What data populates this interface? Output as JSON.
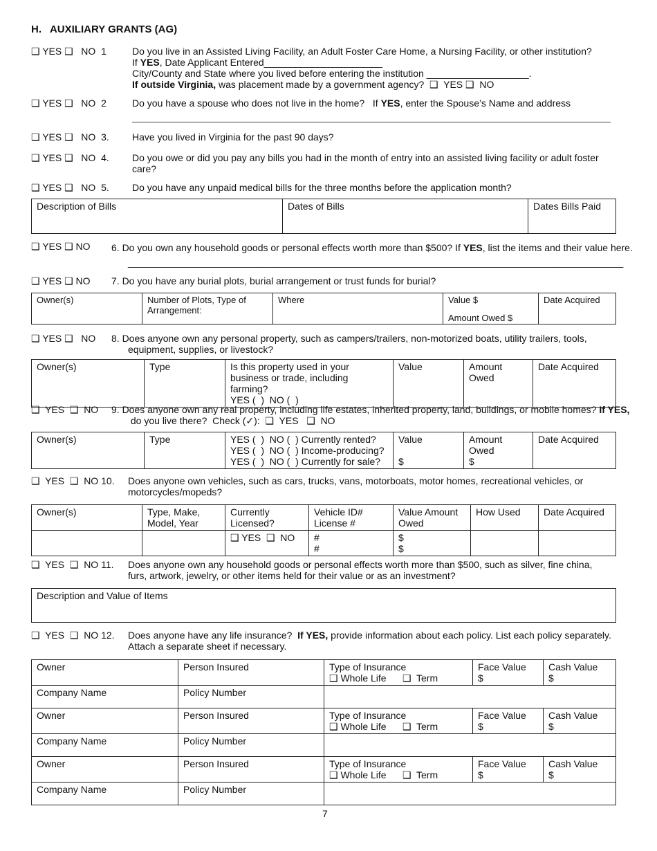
{
  "section_title": "H.   AUXILIARY GRANTS (AG)",
  "checkbox_glyph": "❑",
  "q1": {
    "checks": "❑ YES ❑   NO  1",
    "text": "Do you live in an Assisted Living Facility, an Adult Foster Care Home, a Nursing Facility, or other institution?",
    "if_yes": "YES",
    "l2": ", Date Applicant Entered______________________",
    "l3": "City/County and State where you lived before entering the institution ___________________.",
    "l4_bold": "If outside Virginia,",
    "l4": " was placement made by a government agency?  ❑  YES ❑  NO",
    "if": "If "
  },
  "q2": {
    "checks": "❑ YES ❑   NO  2",
    "text": "Do you have a spouse who does not live in the home?   If ",
    "bold": "YES",
    "text2": ", enter the Spouse’s Name and address"
  },
  "q3": {
    "checks": "❑ YES ❑   NO  3.",
    "text": "Have you lived in Virginia for the past 90 days?"
  },
  "q4": {
    "checks": "❑ YES ❑   NO  4.",
    "text": "Do you owe or did you pay any bills you had in the month of entry into an assisted living facility or adult foster care?"
  },
  "q5": {
    "checks": "❑ YES ❑   NO  5.",
    "text": "Do you have any unpaid medical bills for the three months before the application month?"
  },
  "bills_table": [
    "Description of Bills",
    "Dates of Bills",
    "Dates Bills Paid"
  ],
  "q6": {
    "checks": "❑ YES ❑ NO",
    "text": "6.  Do you own any household goods or personal effects worth more than $500?  If ",
    "bold": "YES",
    "text2": ", list the items and their value here. ____________________________________________________________________________________________"
  },
  "q7": {
    "checks": "❑ YES ❑ NO",
    "text": "7.  Do you have any burial plots, burial arrangement or trust funds for burial?"
  },
  "burial_table": {
    "owner": "Owner(s)",
    "plots": "Number of Plots, Type of Arrangement:",
    "where": "Where",
    "value": "Value $",
    "owed": "Amount Owed $",
    "date": "Date Acquired"
  },
  "q8": {
    "checks": "❑ YES ❑   NO",
    "text": "8.  Does anyone own any personal property, such as campers/trailers, non-motorized boats, utility trailers, tools, equipment, supplies, or livestock?"
  },
  "personal_table": [
    "Owner(s)",
    "Type",
    "Is this property used in your business or trade, including farming?",
    "YES (  )  NO (  )",
    "Value",
    "Amount Owed",
    "Date Acquired"
  ],
  "q9": {
    "checks": "❑  YES  ❑  NO",
    "text": "9.  Does anyone own any real property, including life estates, inherited property, land, buildings, or mobile homes?",
    "bold": "If YES,",
    "text2": " do you live there?  Check (✓):  ❑  YES   ❑  NO"
  },
  "real_table": {
    "owner": "Owner(s)",
    "type": "Type",
    "opts": [
      "YES (  )  NO (  ) Currently rented?",
      "YES (  )  NO (  ) Income-producing?",
      "YES (  )  NO (  ) Currently for sale?"
    ],
    "value": "Value",
    "amount": "Amount Owed",
    "dollar": "$",
    "date": "Date Acquired"
  },
  "q10": {
    "checks": "❑  YES  ❑  NO 10.",
    "text": "Does anyone own vehicles, such as cars, trucks, vans, motorboats, motor homes, recreational vehicles, or motorcycles/mopeds?"
  },
  "vehicle_table": {
    "headers": [
      "Owner(s)",
      "Type, Make, Model, Year",
      "Currently Licensed?",
      "Vehicle ID# License #",
      "Value Amount Owed",
      "How Used",
      "Date Acquired"
    ],
    "licensed": "❑ YES  ❑  NO",
    "hash": "#",
    "dollar": "$"
  },
  "q11": {
    "checks": "❑  YES  ❑  NO 11.",
    "text": "Does anyone own any household goods or personal effects worth more than $500, such as silver, fine china, furs, artwork, jewelry, or other items held for their value or as an investment?"
  },
  "items_table": "Description and Value of Items",
  "q12": {
    "checks": "❑  YES  ❑  NO 12.",
    "text": "Does anyone have any life insurance?  ",
    "bold": "If YES,",
    "text2": " provide information about each policy.  List each policy separately. Attach a separate sheet if necessary."
  },
  "insurance_table": {
    "owner": "Owner",
    "person": "Person Insured",
    "type": "Type of Insurance",
    "whole": "❑ Whole Life",
    "term": "❑  Term",
    "face": "Face Value",
    "cash": "Cash Value",
    "dollar": "$",
    "company": "Company Name",
    "policy": "Policy Number"
  },
  "page_number": "7"
}
